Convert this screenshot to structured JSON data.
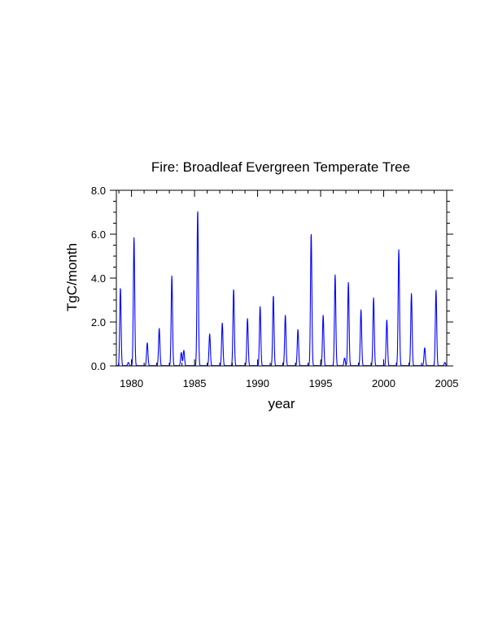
{
  "chart_data": {
    "type": "line",
    "title": "Fire: Broadleaf Evergreen Temperate Tree",
    "xlabel": "year",
    "ylabel": "TgC/month",
    "xlim": [
      1978.8,
      2005
    ],
    "ylim": [
      0,
      8
    ],
    "x_ticks": [
      1980,
      1985,
      1990,
      1995,
      2000,
      2005
    ],
    "x_tick_labels": [
      "1980",
      "1985",
      "1990",
      "1995",
      "2000",
      "2005"
    ],
    "y_ticks": [
      0,
      2,
      4,
      6,
      8
    ],
    "y_tick_labels": [
      "0.0",
      "2.0",
      "4.0",
      "6.0",
      "8.0"
    ],
    "grid": false,
    "legend": "none",
    "colors": {
      "line": "#0000ff",
      "axis": "#000000"
    },
    "series": [
      {
        "peaks": [
          {
            "t": 1979.12,
            "v": 3.55
          },
          {
            "t": 1979.75,
            "v": 0.15
          },
          {
            "t": 1980.2,
            "v": 5.85
          },
          {
            "t": 1981.25,
            "v": 1.05
          },
          {
            "t": 1982.2,
            "v": 1.7
          },
          {
            "t": 1983.2,
            "v": 4.1
          },
          {
            "t": 1983.95,
            "v": 0.6
          },
          {
            "t": 1984.15,
            "v": 0.7
          },
          {
            "t": 1985.25,
            "v": 7.1
          },
          {
            "t": 1986.2,
            "v": 1.45
          },
          {
            "t": 1987.2,
            "v": 1.95
          },
          {
            "t": 1988.1,
            "v": 3.5
          },
          {
            "t": 1989.2,
            "v": 2.15
          },
          {
            "t": 1990.2,
            "v": 2.7
          },
          {
            "t": 1991.25,
            "v": 3.2
          },
          {
            "t": 1992.2,
            "v": 2.3
          },
          {
            "t": 1993.2,
            "v": 1.65
          },
          {
            "t": 1994.25,
            "v": 6.05
          },
          {
            "t": 1995.2,
            "v": 2.3
          },
          {
            "t": 1996.15,
            "v": 4.15
          },
          {
            "t": 1996.9,
            "v": 0.35
          },
          {
            "t": 1997.2,
            "v": 3.8
          },
          {
            "t": 1998.2,
            "v": 2.55
          },
          {
            "t": 1999.2,
            "v": 3.1
          },
          {
            "t": 2000.25,
            "v": 2.1
          },
          {
            "t": 2001.2,
            "v": 5.3
          },
          {
            "t": 2002.2,
            "v": 3.3
          },
          {
            "t": 2003.25,
            "v": 0.82
          },
          {
            "t": 2004.15,
            "v": 3.45
          },
          {
            "t": 2004.85,
            "v": 0.15
          }
        ]
      }
    ]
  }
}
